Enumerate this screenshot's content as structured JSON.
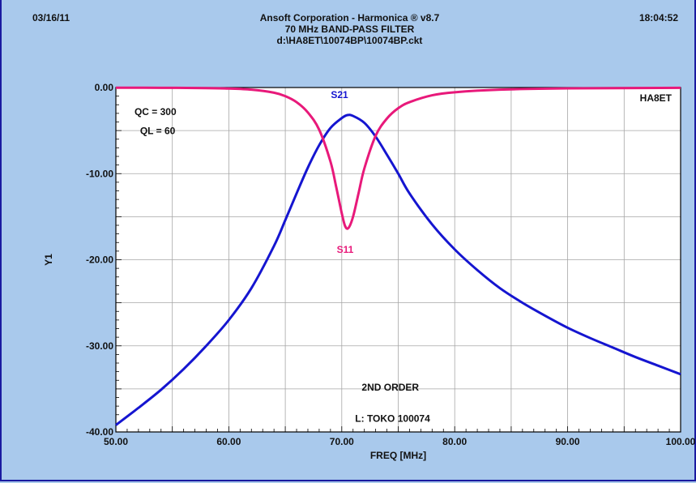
{
  "header": {
    "date": "03/16/11",
    "time": "18:04:52",
    "title_lines": [
      "Ansoft Corporation - Harmonica ® v8.7",
      "70 MHz BAND-PASS FILTER",
      "d:\\HA8ET\\10074BP\\10074BP.ckt"
    ]
  },
  "colors": {
    "background": "#a9c9ec",
    "plot_bg": "#ffffff",
    "s21": "#1515d0",
    "s11": "#e8197a",
    "grid": "#a6a6a6"
  },
  "chart_data": {
    "type": "line",
    "xlabel": "FREQ [MHz]",
    "ylabel": "Y1",
    "xlim": [
      50,
      100
    ],
    "ylim": [
      -40,
      0
    ],
    "x_ticks": [
      "50.00",
      "60.00",
      "70.00",
      "80.00",
      "90.00",
      "100.00"
    ],
    "y_ticks": [
      "0.00",
      "-10.00",
      "-20.00",
      "-30.00",
      "-40.00"
    ],
    "grid": true,
    "annotations": [
      "QC = 300",
      "QL = 60",
      "HA8ET",
      "2ND ORDER",
      "L: TOKO 100074"
    ],
    "series": [
      {
        "name": "S21",
        "color": "#1515d0",
        "x": [
          50,
          52,
          54,
          56,
          58,
          60,
          62,
          64,
          65,
          66,
          67,
          68,
          69,
          70,
          70.5,
          71,
          72,
          73,
          74,
          75,
          76,
          78,
          80,
          82,
          84,
          86,
          88,
          90,
          92,
          94,
          96,
          98,
          100
        ],
        "y": [
          -39.2,
          -37.2,
          -35.1,
          -32.7,
          -30.0,
          -27.0,
          -23.3,
          -18.4,
          -15.4,
          -12.3,
          -9.3,
          -6.7,
          -4.7,
          -3.55,
          -3.2,
          -3.3,
          -4.1,
          -5.7,
          -7.8,
          -10.0,
          -12.3,
          -15.9,
          -18.8,
          -21.2,
          -23.3,
          -25.0,
          -26.5,
          -27.9,
          -29.1,
          -30.2,
          -31.3,
          -32.3,
          -33.3
        ]
      },
      {
        "name": "S11",
        "color": "#e8197a",
        "x": [
          50,
          54,
          58,
          60,
          62,
          64,
          65,
          66,
          67,
          68,
          69,
          69.5,
          70,
          70.3,
          70.6,
          71,
          71.5,
          72,
          73,
          74,
          75,
          76,
          78,
          80,
          84,
          90,
          100
        ],
        "y": [
          -0.02,
          -0.03,
          -0.07,
          -0.12,
          -0.25,
          -0.6,
          -1.0,
          -1.7,
          -2.9,
          -4.9,
          -8.6,
          -11.5,
          -14.6,
          -16.1,
          -16.3,
          -15.0,
          -12.2,
          -9.4,
          -5.6,
          -3.6,
          -2.4,
          -1.7,
          -0.9,
          -0.55,
          -0.25,
          -0.1,
          -0.04
        ]
      }
    ]
  }
}
